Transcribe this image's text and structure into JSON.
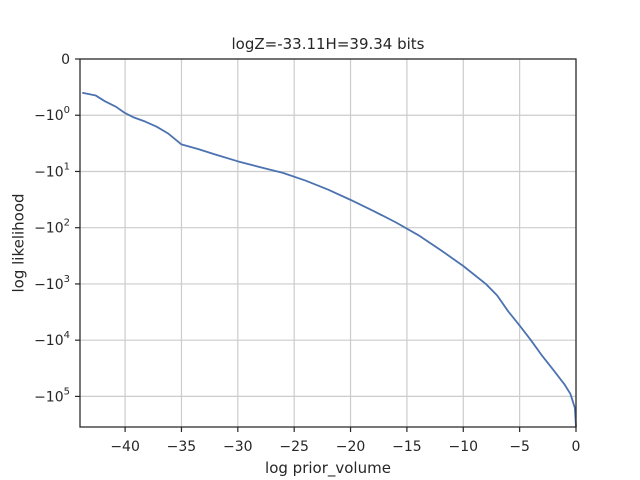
{
  "chart_data": {
    "type": "line",
    "title": "logZ=-33.11H=39.34 bits",
    "xlabel": "log prior_volume",
    "ylabel": "log likelihood",
    "xlim": [
      -44,
      0
    ],
    "y_scale": "symlog",
    "grid": true,
    "x_ticks": [
      {
        "value": -40,
        "label": "−40"
      },
      {
        "value": -35,
        "label": "−35"
      },
      {
        "value": -30,
        "label": "−30"
      },
      {
        "value": -25,
        "label": "−25"
      },
      {
        "value": -20,
        "label": "−20"
      },
      {
        "value": -15,
        "label": "−15"
      },
      {
        "value": -10,
        "label": "−10"
      },
      {
        "value": -5,
        "label": "−5"
      },
      {
        "value": 0,
        "label": "0"
      }
    ],
    "y_ticks": [
      {
        "value": 0,
        "base": "0",
        "exp": ""
      },
      {
        "value": -1,
        "base": "−10",
        "exp": "0"
      },
      {
        "value": -10,
        "base": "−10",
        "exp": "1"
      },
      {
        "value": -100,
        "base": "−10",
        "exp": "2"
      },
      {
        "value": -1000,
        "base": "−10",
        "exp": "3"
      },
      {
        "value": -10000,
        "base": "−10",
        "exp": "4"
      },
      {
        "value": -100000,
        "base": "−10",
        "exp": "5"
      }
    ],
    "series": [
      {
        "color": "#4c72b0",
        "x": [
          -43.8,
          -42.6,
          -41.8,
          -40.8,
          -40.1,
          -39.3,
          -38.2,
          -37.2,
          -36.2,
          -35.0,
          -33.5,
          -32.0,
          -30.0,
          -28.0,
          -26.0,
          -24.0,
          -22.0,
          -20.0,
          -18.0,
          -16.0,
          -14.0,
          -12.0,
          -10.0,
          -8.0,
          -7.0,
          -6.0,
          -5.0,
          -4.0,
          -3.0,
          -2.0,
          -1.0,
          -0.5,
          -0.1,
          0.0
        ],
        "y": [
          -0.6,
          -0.65,
          -0.75,
          -0.85,
          -0.95,
          -1.08,
          -1.3,
          -1.6,
          -2.1,
          -3.3,
          -4.0,
          -5.0,
          -6.6,
          -8.4,
          -10.6,
          -14.5,
          -21,
          -32,
          -50,
          -80,
          -135,
          -250,
          -480,
          -1000,
          -1600,
          -3100,
          -5500,
          -10000,
          -19000,
          -34000,
          -62000,
          -90000,
          -160000,
          -350000
        ]
      }
    ]
  }
}
